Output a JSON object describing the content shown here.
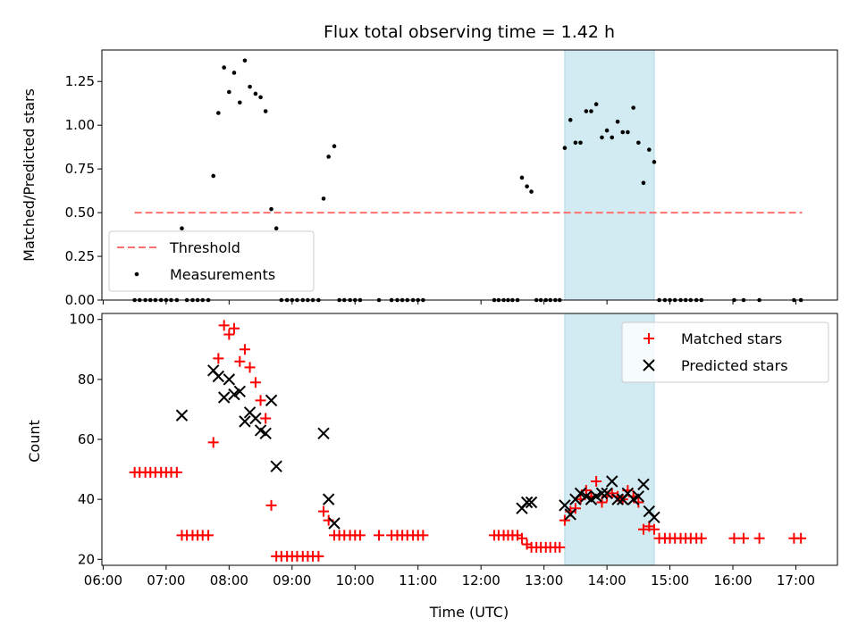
{
  "chart_data": {
    "title": "Flux total observing time = 1.42 h",
    "xlabel": "Time (UTC)",
    "x_ticks": [
      "06:00",
      "07:00",
      "08:00",
      "09:00",
      "10:00",
      "11:00",
      "12:00",
      "13:00",
      "14:00",
      "15:00",
      "16:00",
      "17:00"
    ],
    "xlim": [
      5.98,
      17.66
    ],
    "highlight_span": {
      "start": 13.33,
      "end": 14.75,
      "color": "#add8e6"
    },
    "panels": [
      {
        "type": "scatter",
        "ylabel": "Matched/Predicted stars",
        "ylim": [
          0,
          1.43
        ],
        "y_ticks": [
          0,
          0.25,
          0.5,
          0.75,
          1.0,
          1.25
        ],
        "y_tick_labels": [
          "0.00",
          "0.25",
          "0.50",
          "0.75",
          "1.00",
          "1.25"
        ],
        "legend": {
          "position": "lower-left",
          "entries": [
            "Threshold",
            "Measurements"
          ]
        },
        "threshold": {
          "name": "Threshold",
          "y": 0.5,
          "x_start": 6.5,
          "x_end": 17.1,
          "color": "#ff7070"
        },
        "series": [
          {
            "name": "Measurements",
            "color": "#000000",
            "x": [
              6.5,
              6.58,
              6.67,
              6.75,
              6.83,
              6.92,
              7.0,
              7.08,
              7.17,
              7.25,
              7.33,
              7.42,
              7.5,
              7.58,
              7.67,
              7.75,
              7.83,
              7.92,
              8.0,
              8.08,
              8.17,
              8.25,
              8.33,
              8.42,
              8.5,
              8.58,
              8.67,
              8.75,
              8.83,
              8.92,
              9.0,
              9.08,
              9.17,
              9.25,
              9.33,
              9.42,
              9.5,
              9.58,
              9.67,
              9.75,
              9.83,
              9.92,
              10.0,
              10.08,
              10.38,
              10.58,
              10.67,
              10.75,
              10.83,
              10.92,
              11.0,
              11.08,
              12.21,
              12.28,
              12.36,
              12.43,
              12.5,
              12.58,
              12.65,
              12.73,
              12.8,
              12.88,
              12.95,
              13.03,
              13.1,
              13.18,
              13.25,
              13.33,
              13.42,
              13.5,
              13.58,
              13.67,
              13.75,
              13.83,
              13.92,
              14.0,
              14.08,
              14.17,
              14.25,
              14.33,
              14.42,
              14.5,
              14.58,
              14.67,
              14.75,
              14.83,
              14.92,
              15.0,
              15.08,
              15.17,
              15.25,
              15.33,
              15.42,
              15.5,
              16.02,
              16.17,
              16.42,
              16.97,
              17.08
            ],
            "y": [
              0,
              0,
              0,
              0,
              0,
              0,
              0,
              0,
              0,
              0.41,
              0,
              0,
              0,
              0,
              0,
              0.71,
              1.07,
              1.33,
              1.19,
              1.3,
              1.13,
              1.37,
              1.22,
              1.18,
              1.16,
              1.08,
              0.52,
              0.41,
              0,
              0,
              0,
              0,
              0,
              0,
              0,
              0,
              0.58,
              0.82,
              0.88,
              0,
              0,
              0,
              0,
              0,
              0,
              0,
              0,
              0,
              0,
              0,
              0,
              0,
              0,
              0,
              0,
              0,
              0,
              0,
              0.7,
              0.65,
              0.62,
              0,
              0,
              0,
              0,
              0,
              0,
              0.87,
              1.03,
              0.9,
              0.9,
              1.08,
              1.08,
              1.12,
              0.93,
              0.97,
              0.93,
              1.02,
              0.96,
              0.96,
              1.1,
              0.9,
              0.67,
              0.86,
              0.79,
              0,
              0,
              0,
              0,
              0,
              0,
              0,
              0,
              0,
              0,
              0,
              0,
              0,
              0
            ]
          }
        ]
      },
      {
        "type": "scatter",
        "ylabel": "Count",
        "ylim": [
          18,
          102
        ],
        "y_ticks": [
          20,
          40,
          60,
          80,
          100
        ],
        "y_tick_labels": [
          "20",
          "40",
          "60",
          "80",
          "100"
        ],
        "legend": {
          "position": "top-right",
          "entries": [
            "Matched stars",
            "Predicted stars"
          ]
        },
        "series": [
          {
            "name": "Matched stars",
            "marker": "+",
            "color": "#ff0000",
            "x": [
              6.5,
              6.58,
              6.67,
              6.75,
              6.83,
              6.92,
              7.0,
              7.08,
              7.17,
              7.25,
              7.33,
              7.42,
              7.5,
              7.58,
              7.67,
              7.75,
              7.83,
              7.92,
              8.0,
              8.08,
              8.17,
              8.25,
              8.33,
              8.42,
              8.5,
              8.58,
              8.67,
              8.75,
              8.83,
              8.92,
              9.0,
              9.08,
              9.17,
              9.25,
              9.33,
              9.42,
              9.5,
              9.58,
              9.67,
              9.75,
              9.83,
              9.92,
              10.0,
              10.08,
              10.38,
              10.58,
              10.67,
              10.75,
              10.83,
              10.92,
              11.0,
              11.08,
              12.21,
              12.28,
              12.36,
              12.43,
              12.5,
              12.58,
              12.65,
              12.73,
              12.8,
              12.88,
              12.95,
              13.03,
              13.1,
              13.18,
              13.25,
              13.33,
              13.42,
              13.5,
              13.58,
              13.67,
              13.75,
              13.83,
              13.92,
              14.0,
              14.08,
              14.17,
              14.25,
              14.33,
              14.42,
              14.5,
              14.58,
              14.67,
              14.75,
              14.83,
              14.92,
              15.0,
              15.08,
              15.17,
              15.25,
              15.33,
              15.42,
              15.5,
              16.02,
              16.17,
              16.42,
              16.97,
              17.08
            ],
            "y": [
              49,
              49,
              49,
              49,
              49,
              49,
              49,
              49,
              49,
              28,
              28,
              28,
              28,
              28,
              28,
              59,
              87,
              98,
              95,
              97,
              86,
              90,
              84,
              79,
              73,
              67,
              38,
              21,
              21,
              21,
              21,
              21,
              21,
              21,
              21,
              21,
              36,
              33,
              28,
              28,
              28,
              28,
              28,
              28,
              28,
              28,
              28,
              28,
              28,
              28,
              28,
              28,
              28,
              28,
              28,
              28,
              28,
              28,
              27,
              25,
              24,
              24,
              24,
              24,
              24,
              24,
              24,
              33,
              36,
              37,
              40,
              43,
              41,
              46,
              39,
              41,
              42,
              41,
              40,
              43,
              41,
              39,
              30,
              31,
              30,
              27,
              27,
              27,
              27,
              27,
              27,
              27,
              27,
              27,
              27,
              27,
              27,
              27,
              27
            ]
          },
          {
            "name": "Predicted stars",
            "marker": "x",
            "color": "#000000",
            "x": [
              7.25,
              7.75,
              7.83,
              7.92,
              8.0,
              8.08,
              8.17,
              8.25,
              8.33,
              8.42,
              8.5,
              8.58,
              8.67,
              8.75,
              9.5,
              9.58,
              9.67,
              12.65,
              12.73,
              12.8,
              13.33,
              13.42,
              13.5,
              13.58,
              13.67,
              13.75,
              13.83,
              13.92,
              14.0,
              14.08,
              14.17,
              14.25,
              14.33,
              14.42,
              14.5,
              14.58,
              14.67,
              14.75
            ],
            "y": [
              68,
              83,
              81,
              74,
              80,
              75,
              76,
              66,
              69,
              67,
              63,
              62,
              73,
              51,
              62,
              40,
              32,
              37,
              39,
              39,
              38,
              35,
              40,
              42,
              41,
              40,
              41,
              42,
              42,
              46,
              40,
              40,
              42,
              40,
              41,
              45,
              36,
              34
            ]
          }
        ]
      }
    ]
  }
}
